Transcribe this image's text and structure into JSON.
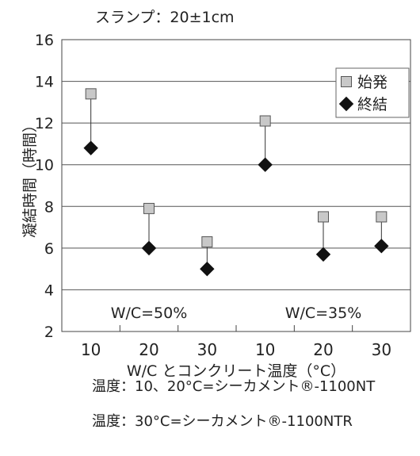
{
  "chart_data": {
    "type": "scatter",
    "title": "スランプ：20±1cm",
    "ylabel": "凝結時間（時間）",
    "xlabel": "W/C とコンクリート温度（°C）",
    "ylim": [
      2,
      16
    ],
    "yticks": [
      2,
      4,
      6,
      8,
      10,
      12,
      14,
      16
    ],
    "grid": true,
    "legend_position": "top-right",
    "categories": [
      "10",
      "20",
      "30",
      "10",
      "20",
      "30"
    ],
    "groups": [
      {
        "label": "W/C=50%",
        "start": 0,
        "end": 2
      },
      {
        "label": "W/C=35%",
        "start": 3,
        "end": 5
      }
    ],
    "series": [
      {
        "name": "始発",
        "marker": "square",
        "color": "#c8c8c8",
        "values": [
          13.4,
          7.9,
          6.3,
          12.1,
          7.5,
          7.5
        ]
      },
      {
        "name": "終結",
        "marker": "diamond",
        "color": "#111111",
        "values": [
          10.8,
          6.0,
          5.0,
          10.0,
          5.7,
          6.1
        ]
      }
    ]
  },
  "notes": [
    "温度：10、20°C=シーカメント®-1100NT",
    "温度：30°C=シーカメント®-1100NTR"
  ]
}
